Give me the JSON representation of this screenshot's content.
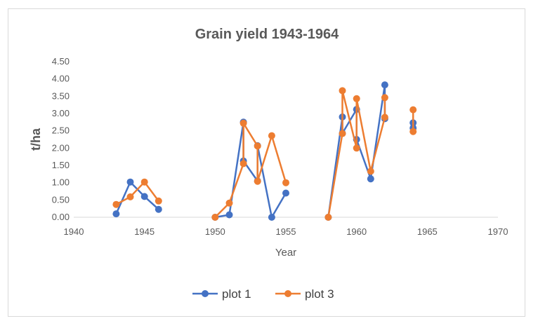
{
  "chart_data": {
    "type": "scatter",
    "title": "Grain yield 1943-1964",
    "xlabel": "Year",
    "ylabel": "t/ha",
    "xlim": [
      1940,
      1970
    ],
    "ylim": [
      0,
      4.5
    ],
    "x_ticks": [
      "1940",
      "1945",
      "1950",
      "1955",
      "1960",
      "1965",
      "1970"
    ],
    "y_ticks": [
      "0.00",
      "0.50",
      "1.00",
      "1.50",
      "2.00",
      "2.50",
      "3.00",
      "3.50",
      "4.00",
      "4.50"
    ],
    "grid": false,
    "legend_position": "bottom",
    "series": [
      {
        "name": "plot 1",
        "color": "#4472c4",
        "segments": [
          [
            [
              1943,
              0.1
            ],
            [
              1944,
              1.02
            ],
            [
              1945,
              0.6
            ],
            [
              1946,
              0.23
            ]
          ],
          [
            [
              1950,
              0.0
            ],
            [
              1951,
              0.07
            ],
            [
              1952,
              2.75
            ],
            [
              1952,
              1.63
            ],
            [
              1953,
              1.05
            ],
            [
              1953,
              2.07
            ],
            [
              1954,
              0.0
            ],
            [
              1955,
              0.7
            ]
          ],
          [
            [
              1958,
              0.0
            ],
            [
              1959,
              2.9
            ],
            [
              1959,
              2.43
            ],
            [
              1960,
              3.12
            ],
            [
              1960,
              2.25
            ],
            [
              1961,
              1.11
            ],
            [
              1962,
              3.83
            ],
            [
              1962,
              2.85
            ]
          ],
          [
            [
              1964,
              2.73
            ],
            [
              1964,
              2.58
            ]
          ]
        ]
      },
      {
        "name": "plot 3",
        "color": "#ed7d31",
        "segments": [
          [
            [
              1943,
              0.37
            ],
            [
              1944,
              0.59
            ],
            [
              1945,
              1.02
            ],
            [
              1946,
              0.47
            ]
          ],
          [
            [
              1950,
              0.0
            ],
            [
              1951,
              0.41
            ],
            [
              1952,
              1.55
            ],
            [
              1952,
              2.72
            ],
            [
              1953,
              2.06
            ],
            [
              1953,
              1.04
            ],
            [
              1954,
              2.36
            ],
            [
              1955,
              1.0
            ]
          ],
          [
            [
              1958,
              0.0
            ],
            [
              1959,
              2.42
            ],
            [
              1959,
              3.66
            ],
            [
              1960,
              2.0
            ],
            [
              1960,
              3.43
            ],
            [
              1961,
              1.33
            ],
            [
              1962,
              2.89
            ],
            [
              1962,
              3.46
            ]
          ],
          [
            [
              1964,
              3.11
            ],
            [
              1964,
              2.48
            ]
          ]
        ]
      }
    ]
  }
}
